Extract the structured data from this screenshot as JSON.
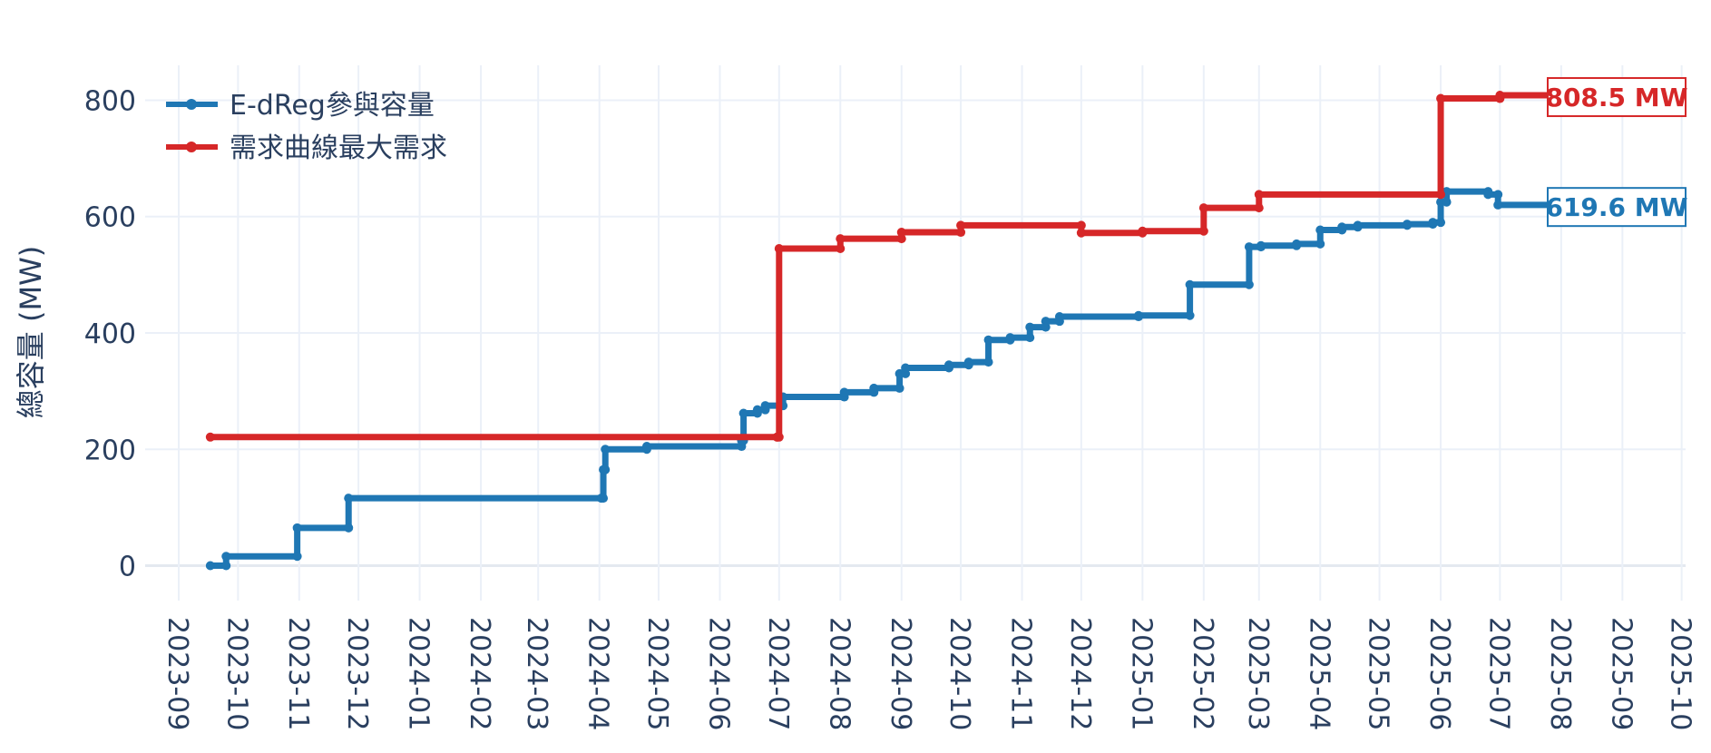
{
  "chart_data": {
    "type": "line",
    "title": "",
    "xlabel": "",
    "ylabel": "總容量 (MW)",
    "ylim": [
      -60,
      860
    ],
    "y_ticks": [
      0,
      200,
      400,
      600,
      800
    ],
    "x_range": [
      "2023-08-15",
      "2025-10-03"
    ],
    "x_ticks": [
      "2023-09",
      "2023-10",
      "2023-11",
      "2023-12",
      "2024-01",
      "2024-02",
      "2024-03",
      "2024-04",
      "2024-05",
      "2024-06",
      "2024-07",
      "2024-08",
      "2024-09",
      "2024-10",
      "2024-11",
      "2024-12",
      "2025-01",
      "2025-02",
      "2025-03",
      "2025-04",
      "2025-05",
      "2025-06",
      "2025-07",
      "2025-08",
      "2025-09",
      "2025-10"
    ],
    "grid": true,
    "legend_position": "top-left",
    "series": [
      {
        "name": "E-dReg參與容量",
        "color": "#1f77b4",
        "step": true,
        "points": [
          [
            "2023-09-17",
            0
          ],
          [
            "2023-09-25",
            16
          ],
          [
            "2023-10-31",
            65
          ],
          [
            "2023-11-26",
            116
          ],
          [
            "2024-04-02",
            116
          ],
          [
            "2024-04-03",
            165
          ],
          [
            "2024-04-04",
            200
          ],
          [
            "2024-04-25",
            205
          ],
          [
            "2024-06-12",
            215
          ],
          [
            "2024-06-13",
            262
          ],
          [
            "2024-06-20",
            268
          ],
          [
            "2024-06-24",
            275
          ],
          [
            "2024-07-03",
            290
          ],
          [
            "2024-08-03",
            298
          ],
          [
            "2024-08-18",
            305
          ],
          [
            "2024-08-31",
            330
          ],
          [
            "2024-09-03",
            340
          ],
          [
            "2024-09-25",
            345
          ],
          [
            "2024-10-05",
            350
          ],
          [
            "2024-10-15",
            388
          ],
          [
            "2024-10-26",
            392
          ],
          [
            "2024-11-05",
            410
          ],
          [
            "2024-11-13",
            420
          ],
          [
            "2024-11-20",
            428
          ],
          [
            "2024-12-30",
            430
          ],
          [
            "2025-01-25",
            483
          ],
          [
            "2025-02-24",
            548
          ],
          [
            "2025-03-02",
            550
          ],
          [
            "2025-03-20",
            553
          ],
          [
            "2025-04-01",
            577
          ],
          [
            "2025-04-12",
            582
          ],
          [
            "2025-04-20",
            585
          ],
          [
            "2025-05-15",
            587
          ],
          [
            "2025-05-28",
            590
          ],
          [
            "2025-06-01",
            625
          ],
          [
            "2025-06-04",
            643
          ],
          [
            "2025-06-25",
            638
          ],
          [
            "2025-06-30",
            620
          ],
          [
            "2025-08-01",
            619.6
          ]
        ]
      },
      {
        "name": "需求曲線最大需求",
        "color": "#d62728",
        "step": true,
        "points": [
          [
            "2023-09-17",
            221
          ],
          [
            "2024-06-30",
            221
          ],
          [
            "2024-07-01",
            545
          ],
          [
            "2024-08-01",
            562
          ],
          [
            "2024-09-01",
            573
          ],
          [
            "2024-10-01",
            585
          ],
          [
            "2024-12-01",
            572
          ],
          [
            "2025-01-01",
            575
          ],
          [
            "2025-02-01",
            615
          ],
          [
            "2025-03-01",
            638
          ],
          [
            "2025-06-01",
            803
          ],
          [
            "2025-07-01",
            808.5
          ],
          [
            "2025-08-01",
            808.5
          ]
        ]
      }
    ],
    "annotations": [
      {
        "text": "808.5 MW",
        "series": 1,
        "color": "#d62728"
      },
      {
        "text": "619.6 MW",
        "series": 0,
        "color": "#1f77b4"
      }
    ]
  }
}
